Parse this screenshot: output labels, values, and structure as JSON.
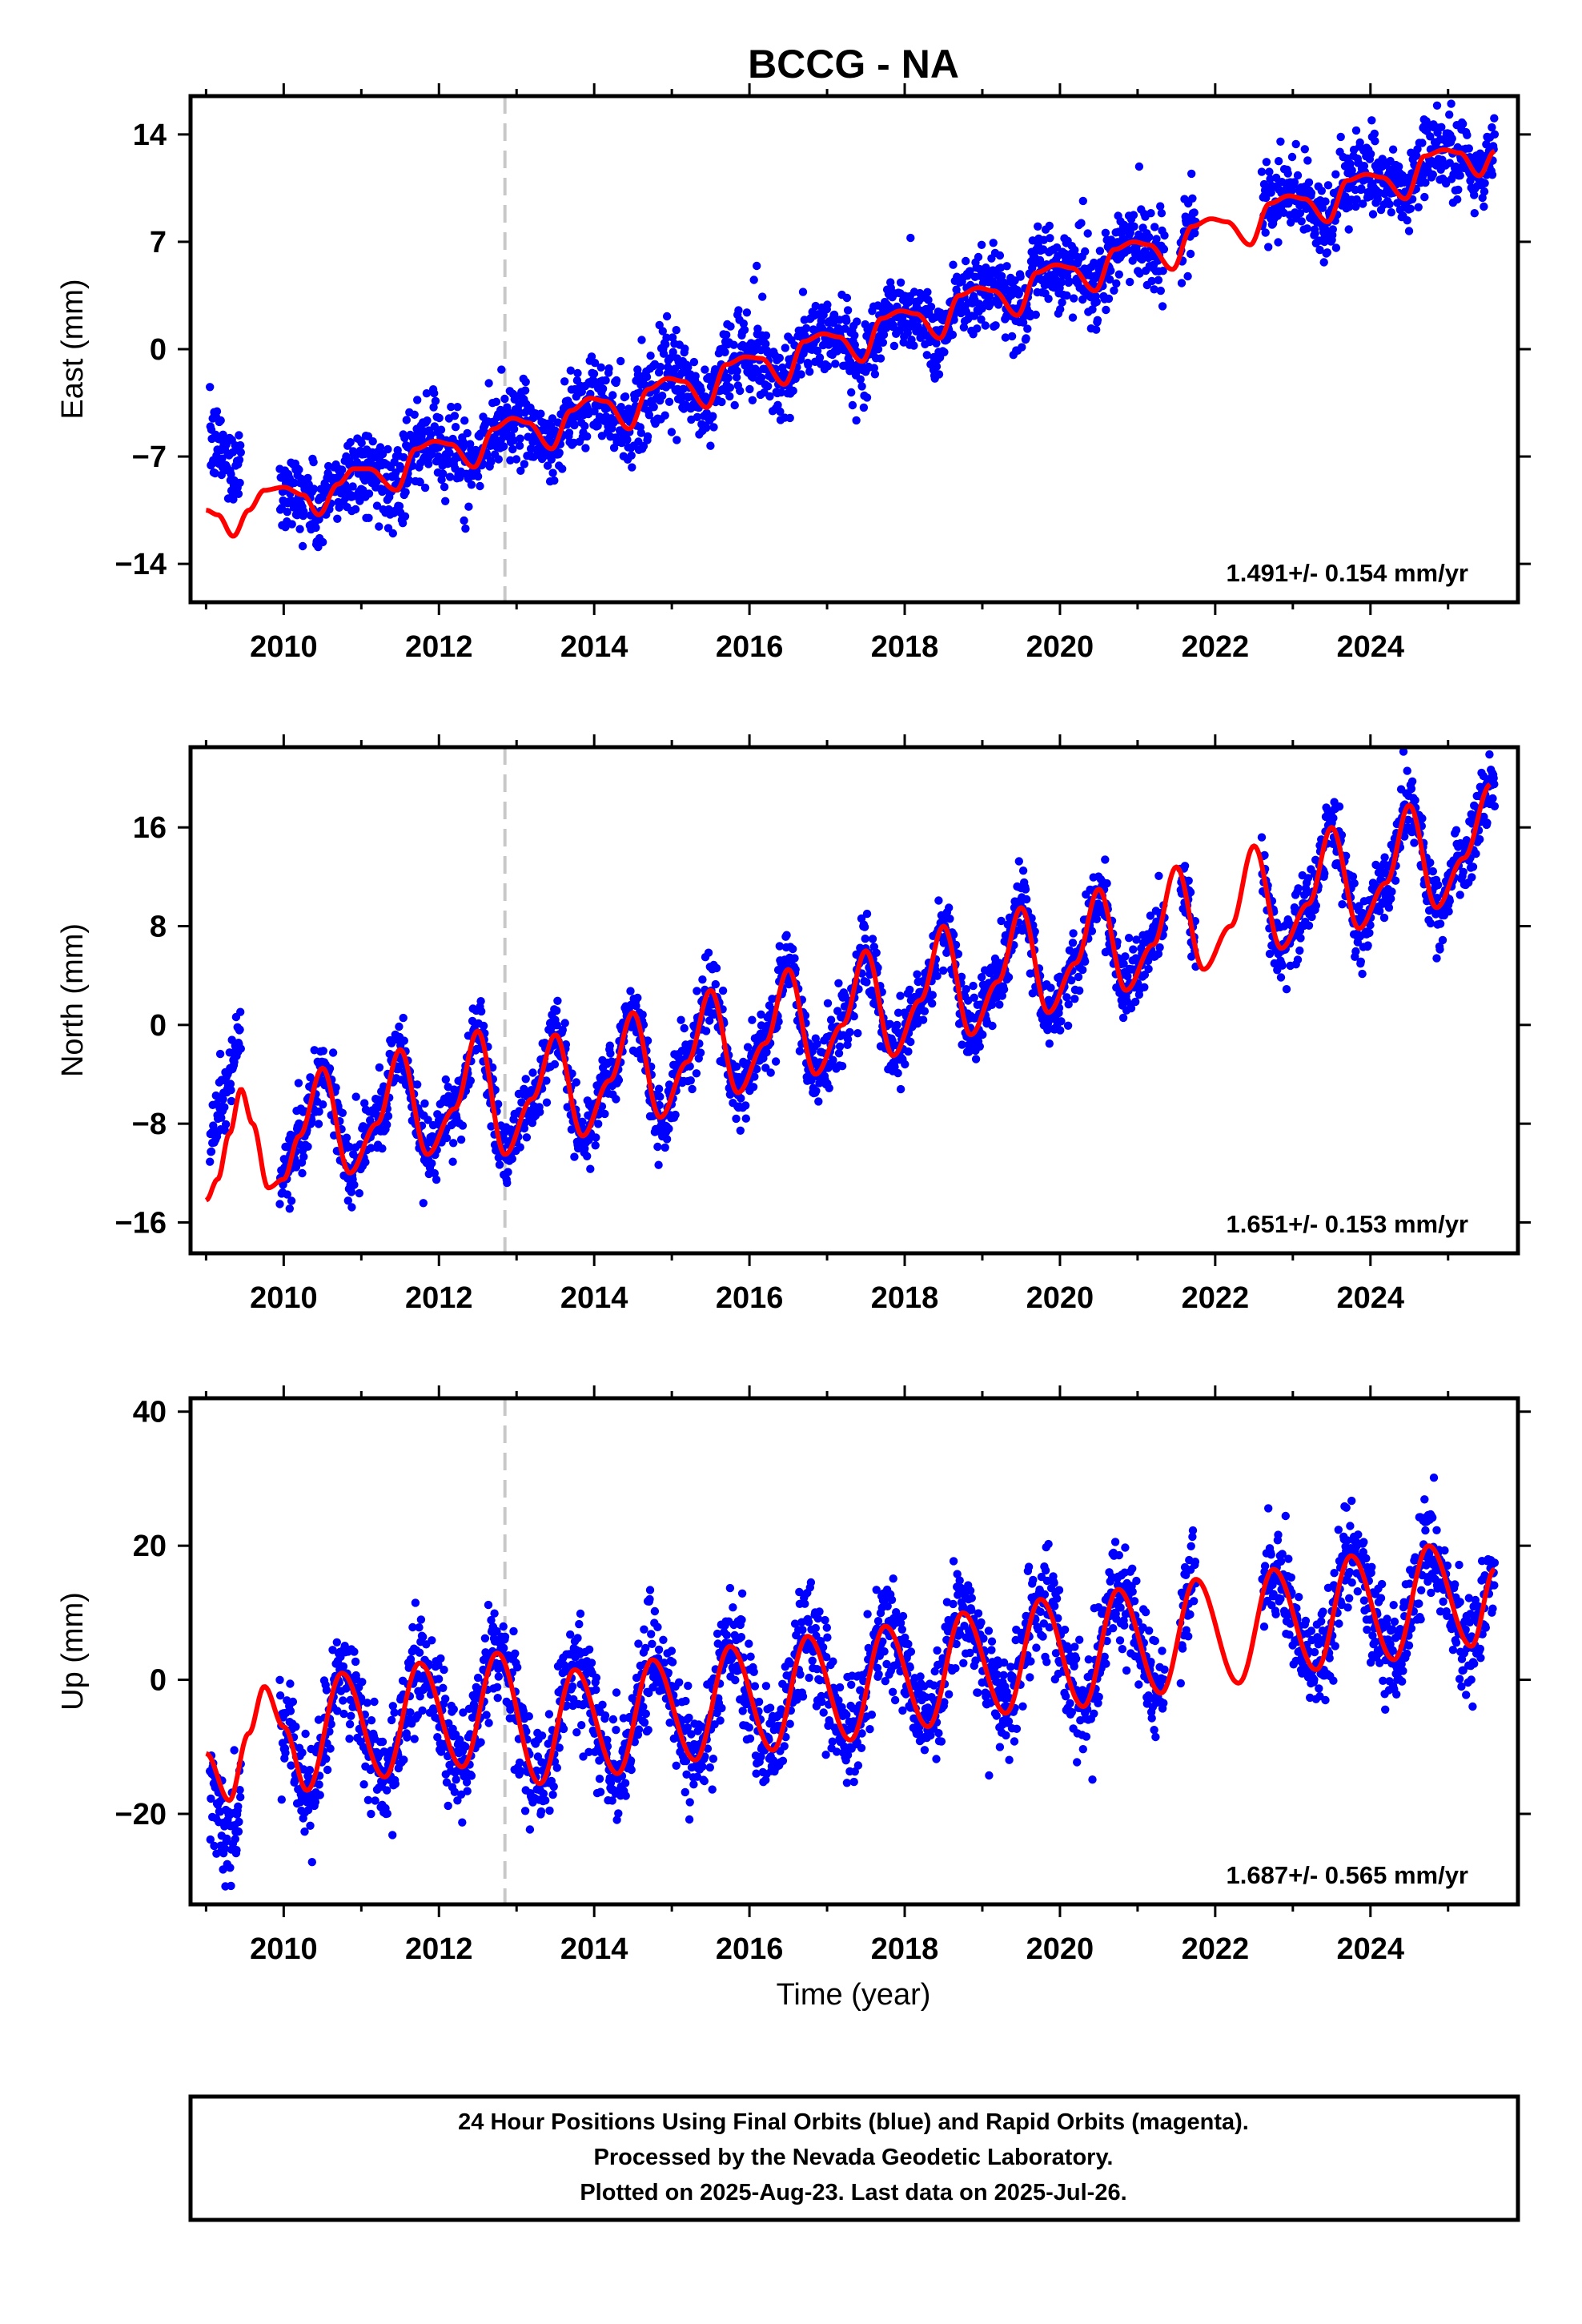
{
  "title": "BCCG - NA",
  "x_axis_title": "Time (year)",
  "caption_lines": [
    "24 Hour Positions Using Final Orbits (blue) and Rapid Orbits (magenta).",
    "Processed by the Nevada Geodetic Laboratory.",
    "Plotted on 2025-Aug-23. Last data on 2025-Jul-26."
  ],
  "colors": {
    "data_points": "#0000ff",
    "model_line": "#ff0000",
    "event_line": "#c8c8c8",
    "frame": "#000000"
  },
  "chart_data": [
    {
      "type": "scatter",
      "component": "East",
      "ylabel": "East (mm)",
      "xlim": [
        2008.8,
        2025.9
      ],
      "ylim": [
        -16.5,
        16.5
      ],
      "x_ticks": [
        2010,
        2012,
        2014,
        2016,
        2018,
        2020,
        2022,
        2024
      ],
      "y_ticks": [
        -14,
        -7,
        0,
        7,
        14
      ],
      "rate_label": "1.491+/- 0.154 mm/yr",
      "event_line_x": 2012.85,
      "trend": {
        "rate": 1.491,
        "value_at_2017": 0.0
      },
      "model": {
        "points": [
          [
            2009.0,
            -10.5
          ],
          [
            2009.15,
            -10.8
          ],
          [
            2009.35,
            -12.2
          ],
          [
            2009.55,
            -10.5
          ],
          [
            2009.75,
            -9.2
          ],
          [
            2010.0,
            -9.0
          ],
          [
            2010.25,
            -9.5
          ],
          [
            2010.45,
            -10.8
          ],
          [
            2010.7,
            -8.8
          ],
          [
            2010.9,
            -7.8
          ],
          [
            2011.1,
            -7.8
          ],
          [
            2011.45,
            -9.2
          ],
          [
            2011.7,
            -6.5
          ],
          [
            2011.95,
            -6.0
          ],
          [
            2012.15,
            -6.2
          ],
          [
            2012.45,
            -7.7
          ],
          [
            2012.7,
            -5.2
          ],
          [
            2012.95,
            -4.5
          ],
          [
            2013.15,
            -4.8
          ],
          [
            2013.45,
            -6.5
          ],
          [
            2013.7,
            -4.0
          ],
          [
            2013.95,
            -3.2
          ],
          [
            2014.15,
            -3.4
          ],
          [
            2014.45,
            -5.2
          ],
          [
            2014.7,
            -2.6
          ],
          [
            2014.95,
            -1.9
          ],
          [
            2015.15,
            -2.1
          ],
          [
            2015.45,
            -3.8
          ],
          [
            2015.7,
            -1.0
          ],
          [
            2015.95,
            -0.5
          ],
          [
            2016.15,
            -0.6
          ],
          [
            2016.45,
            -2.3
          ],
          [
            2016.7,
            0.5
          ],
          [
            2016.95,
            1.0
          ],
          [
            2017.15,
            0.8
          ],
          [
            2017.45,
            -0.8
          ],
          [
            2017.7,
            2.0
          ],
          [
            2017.95,
            2.5
          ],
          [
            2018.15,
            2.3
          ],
          [
            2018.45,
            0.7
          ],
          [
            2018.7,
            3.5
          ],
          [
            2018.95,
            4.0
          ],
          [
            2019.15,
            3.8
          ],
          [
            2019.45,
            2.2
          ],
          [
            2019.7,
            5.0
          ],
          [
            2019.95,
            5.5
          ],
          [
            2020.15,
            5.3
          ],
          [
            2020.45,
            3.8
          ],
          [
            2020.7,
            6.5
          ],
          [
            2020.95,
            7.0
          ],
          [
            2021.15,
            6.8
          ],
          [
            2021.45,
            5.2
          ],
          [
            2021.7,
            8.0
          ],
          [
            2021.95,
            8.5
          ],
          [
            2022.15,
            8.3
          ],
          [
            2022.45,
            6.8
          ],
          [
            2022.7,
            9.5
          ],
          [
            2022.95,
            10.0
          ],
          [
            2023.15,
            9.8
          ],
          [
            2023.45,
            8.3
          ],
          [
            2023.7,
            11.0
          ],
          [
            2023.95,
            11.4
          ],
          [
            2024.15,
            11.2
          ],
          [
            2024.45,
            9.8
          ],
          [
            2024.7,
            12.6
          ],
          [
            2024.95,
            13.0
          ],
          [
            2025.15,
            12.8
          ],
          [
            2025.4,
            11.3
          ],
          [
            2025.6,
            12.9
          ]
        ]
      },
      "seasonal": {
        "annual_amp": 0.9,
        "phase": 0.55,
        "noise": 1.3
      },
      "segments": [
        [
          2009.05,
          2009.45
        ],
        [
          2009.95,
          2021.35
        ],
        [
          2021.55,
          2021.75
        ],
        [
          2022.6,
          2025.6
        ]
      ],
      "offsets": [
        {
          "from": 2009.05,
          "to": 2009.45,
          "shift": 7.5
        }
      ]
    },
    {
      "type": "scatter",
      "component": "North",
      "ylabel": "North (mm)",
      "xlim": [
        2008.8,
        2025.9
      ],
      "ylim": [
        -18.5,
        22.5
      ],
      "x_ticks": [
        2010,
        2012,
        2014,
        2016,
        2018,
        2020,
        2022,
        2024
      ],
      "y_ticks": [
        -16,
        -8,
        0,
        8,
        16
      ],
      "rate_label": "1.651+/- 0.153 mm/yr",
      "event_line_x": 2012.85,
      "trend": {
        "rate": 1.651,
        "value_at_2017": -0.3
      },
      "model": {
        "points": [
          [
            2009.0,
            -14.2
          ],
          [
            2009.15,
            -12.5
          ],
          [
            2009.3,
            -8.8
          ],
          [
            2009.45,
            -5.2
          ],
          [
            2009.6,
            -8.0
          ],
          [
            2009.8,
            -13.2
          ],
          [
            2010.0,
            -12.5
          ],
          [
            2010.2,
            -9.0
          ],
          [
            2010.5,
            -3.5
          ],
          [
            2010.85,
            -12.0
          ],
          [
            2011.2,
            -8.0
          ],
          [
            2011.5,
            -2.0
          ],
          [
            2011.85,
            -10.5
          ],
          [
            2012.2,
            -6.8
          ],
          [
            2012.5,
            -0.5
          ],
          [
            2012.85,
            -10.5
          ],
          [
            2013.2,
            -6.0
          ],
          [
            2013.5,
            -0.8
          ],
          [
            2013.85,
            -9.0
          ],
          [
            2014.2,
            -4.5
          ],
          [
            2014.5,
            1.0
          ],
          [
            2014.85,
            -7.5
          ],
          [
            2015.2,
            -3.0
          ],
          [
            2015.5,
            2.8
          ],
          [
            2015.85,
            -5.5
          ],
          [
            2016.2,
            -1.5
          ],
          [
            2016.5,
            4.5
          ],
          [
            2016.85,
            -4.0
          ],
          [
            2017.2,
            0.0
          ],
          [
            2017.5,
            6.0
          ],
          [
            2017.85,
            -2.5
          ],
          [
            2018.2,
            2.0
          ],
          [
            2018.5,
            8.0
          ],
          [
            2018.85,
            -0.8
          ],
          [
            2019.2,
            3.5
          ],
          [
            2019.5,
            9.5
          ],
          [
            2019.85,
            1.0
          ],
          [
            2020.2,
            5.0
          ],
          [
            2020.5,
            11.0
          ],
          [
            2020.85,
            2.8
          ],
          [
            2021.2,
            6.5
          ],
          [
            2021.5,
            12.8
          ],
          [
            2021.85,
            4.5
          ],
          [
            2022.2,
            8.0
          ],
          [
            2022.5,
            14.5
          ],
          [
            2022.85,
            6.2
          ],
          [
            2023.2,
            9.8
          ],
          [
            2023.5,
            16.0
          ],
          [
            2023.85,
            7.8
          ],
          [
            2024.2,
            11.5
          ],
          [
            2024.5,
            17.8
          ],
          [
            2024.85,
            9.5
          ],
          [
            2025.2,
            13.5
          ],
          [
            2025.55,
            19.5
          ]
        ]
      },
      "seasonal": {
        "annual_amp": 4.3,
        "phase": 0.5,
        "noise": 1.4
      },
      "segments": [
        [
          2009.05,
          2009.45
        ],
        [
          2009.95,
          2021.35
        ],
        [
          2021.55,
          2021.75
        ],
        [
          2022.6,
          2025.6
        ]
      ],
      "offsets": [
        {
          "from": 2009.05,
          "to": 2009.45,
          "shift": 8.0
        }
      ]
    },
    {
      "type": "scatter",
      "component": "Up",
      "ylabel": "Up (mm)",
      "xlim": [
        2008.8,
        2025.9
      ],
      "ylim": [
        -33.5,
        42.0
      ],
      "x_ticks": [
        2010,
        2012,
        2014,
        2016,
        2018,
        2020,
        2022,
        2024
      ],
      "y_ticks": [
        -20,
        0,
        20,
        40
      ],
      "rate_label": "1.687+/- 0.565 mm/yr",
      "event_line_x": 2012.85,
      "trend": {
        "rate": 1.687,
        "value_at_2017": -1.0
      },
      "model": {
        "points": [
          [
            2009.0,
            -11.0
          ],
          [
            2009.3,
            -18.0
          ],
          [
            2009.55,
            -8.0
          ],
          [
            2009.75,
            -1.0
          ],
          [
            2010.0,
            -7.0
          ],
          [
            2010.3,
            -16.5
          ],
          [
            2010.75,
            1.0
          ],
          [
            2011.3,
            -14.5
          ],
          [
            2011.75,
            2.5
          ],
          [
            2012.3,
            -13.0
          ],
          [
            2012.75,
            4.0
          ],
          [
            2013.3,
            -15.5
          ],
          [
            2013.75,
            1.5
          ],
          [
            2014.3,
            -14.0
          ],
          [
            2014.75,
            3.0
          ],
          [
            2015.3,
            -12.0
          ],
          [
            2015.75,
            5.0
          ],
          [
            2016.3,
            -10.5
          ],
          [
            2016.75,
            6.5
          ],
          [
            2017.3,
            -9.0
          ],
          [
            2017.75,
            8.0
          ],
          [
            2018.3,
            -7.0
          ],
          [
            2018.75,
            10.0
          ],
          [
            2019.3,
            -5.0
          ],
          [
            2019.75,
            12.0
          ],
          [
            2020.3,
            -4.0
          ],
          [
            2020.75,
            13.5
          ],
          [
            2021.3,
            -2.0
          ],
          [
            2021.75,
            15.0
          ],
          [
            2022.3,
            -0.5
          ],
          [
            2022.75,
            16.5
          ],
          [
            2023.3,
            1.5
          ],
          [
            2023.75,
            18.5
          ],
          [
            2024.3,
            3.0
          ],
          [
            2024.75,
            20.0
          ],
          [
            2025.3,
            5.0
          ],
          [
            2025.6,
            16.5
          ]
        ]
      },
      "seasonal": {
        "annual_amp": 9.0,
        "phase": 0.75,
        "noise": 4.0
      },
      "segments": [
        [
          2009.05,
          2009.45
        ],
        [
          2009.95,
          2021.35
        ],
        [
          2021.55,
          2021.75
        ],
        [
          2022.6,
          2025.6
        ]
      ],
      "offsets": [
        {
          "from": 2009.05,
          "to": 2009.45,
          "shift": -10.0
        }
      ]
    }
  ]
}
